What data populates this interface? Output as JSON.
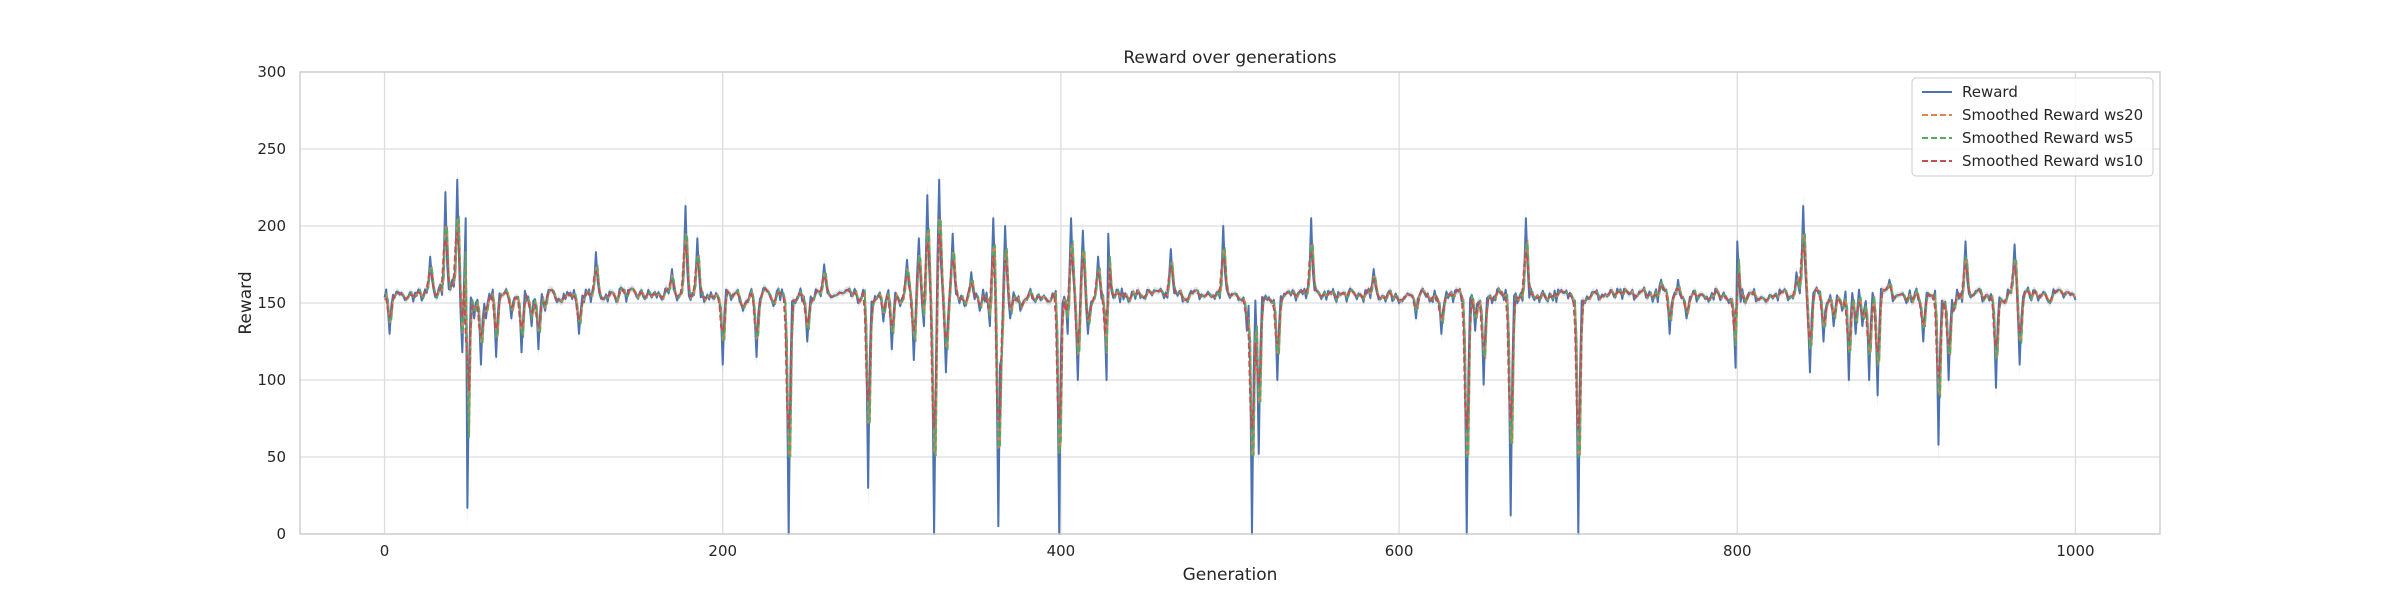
{
  "chart_data": {
    "type": "line",
    "title": "Reward over generations",
    "xlabel": "Generation",
    "ylabel": "Reward",
    "xlim": [
      -50,
      1050
    ],
    "ylim": [
      0,
      300
    ],
    "xticks": [
      0,
      200,
      400,
      600,
      800,
      1000
    ],
    "yticks": [
      0,
      50,
      100,
      150,
      200,
      250,
      300
    ],
    "grid": true,
    "legend_position": "upper right",
    "baseline": 155,
    "colors": {
      "Reward": "#4c72b0",
      "Smoothed Reward ws20": "#dd8452",
      "Smoothed Reward ws5": "#55a868",
      "Smoothed Reward ws10": "#c44e52",
      "band": "#4c72b0"
    },
    "series": [
      {
        "name": "Reward",
        "style": "solid"
      },
      {
        "name": "Smoothed Reward ws20",
        "style": "dashed"
      },
      {
        "name": "Smoothed Reward ws5",
        "style": "dashed"
      },
      {
        "name": "Smoothed Reward ws10",
        "style": "dashed"
      }
    ],
    "reward_events": [
      [
        3,
        130
      ],
      [
        12,
        152
      ],
      [
        27,
        180
      ],
      [
        33,
        162
      ],
      [
        36,
        222
      ],
      [
        40,
        165
      ],
      [
        43,
        230
      ],
      [
        46,
        118
      ],
      [
        48,
        205
      ],
      [
        49,
        17
      ],
      [
        53,
        140
      ],
      [
        57,
        110
      ],
      [
        60,
        140
      ],
      [
        66,
        115
      ],
      [
        75,
        140
      ],
      [
        81,
        118
      ],
      [
        87,
        135
      ],
      [
        91,
        120
      ],
      [
        95,
        145
      ],
      [
        115,
        130
      ],
      [
        125,
        183
      ],
      [
        140,
        160
      ],
      [
        170,
        172
      ],
      [
        178,
        213
      ],
      [
        185,
        192
      ],
      [
        200,
        110
      ],
      [
        205,
        152
      ],
      [
        212,
        145
      ],
      [
        220,
        115
      ],
      [
        225,
        160
      ],
      [
        230,
        148
      ],
      [
        237,
        150
      ],
      [
        239,
        0
      ],
      [
        243,
        150
      ],
      [
        250,
        125
      ],
      [
        260,
        175
      ],
      [
        280,
        150
      ],
      [
        286,
        30
      ],
      [
        289,
        148
      ],
      [
        292,
        155
      ],
      [
        295,
        138
      ],
      [
        300,
        120
      ],
      [
        305,
        148
      ],
      [
        309,
        178
      ],
      [
        313,
        113
      ],
      [
        316,
        192
      ],
      [
        319,
        135
      ],
      [
        321,
        220
      ],
      [
        325,
        0
      ],
      [
        328,
        230
      ],
      [
        332,
        105
      ],
      [
        336,
        195
      ],
      [
        340,
        150
      ],
      [
        343,
        148
      ],
      [
        347,
        170
      ],
      [
        352,
        145
      ],
      [
        358,
        135
      ],
      [
        360,
        205
      ],
      [
        363,
        5
      ],
      [
        365,
        115
      ],
      [
        367,
        200
      ],
      [
        370,
        140
      ],
      [
        376,
        145
      ],
      [
        380,
        152
      ],
      [
        399,
        0
      ],
      [
        401,
        150
      ],
      [
        404,
        130
      ],
      [
        406,
        205
      ],
      [
        410,
        100
      ],
      [
        413,
        197
      ],
      [
        416,
        130
      ],
      [
        422,
        180
      ],
      [
        425,
        155
      ],
      [
        427,
        100
      ],
      [
        428,
        195
      ],
      [
        465,
        185
      ],
      [
        496,
        200
      ],
      [
        510,
        132
      ],
      [
        513,
        0
      ],
      [
        517,
        52
      ],
      [
        522,
        152
      ],
      [
        525,
        150
      ],
      [
        528,
        100
      ],
      [
        548,
        205
      ],
      [
        585,
        172
      ],
      [
        600,
        150
      ],
      [
        610,
        140
      ],
      [
        625,
        130
      ],
      [
        640,
        0
      ],
      [
        645,
        132
      ],
      [
        650,
        97
      ],
      [
        655,
        150
      ],
      [
        666,
        12
      ],
      [
        670,
        150
      ],
      [
        675,
        205
      ],
      [
        680,
        152
      ],
      [
        706,
        0
      ],
      [
        710,
        150
      ],
      [
        745,
        160
      ],
      [
        755,
        165
      ],
      [
        760,
        130
      ],
      [
        765,
        165
      ],
      [
        770,
        140
      ],
      [
        780,
        155
      ],
      [
        795,
        150
      ],
      [
        799,
        108
      ],
      [
        800,
        190
      ],
      [
        805,
        150
      ],
      [
        820,
        155
      ],
      [
        835,
        170
      ],
      [
        839,
        213
      ],
      [
        843,
        105
      ],
      [
        847,
        160
      ],
      [
        851,
        125
      ],
      [
        853,
        150
      ],
      [
        857,
        135
      ],
      [
        862,
        145
      ],
      [
        866,
        100
      ],
      [
        870,
        130
      ],
      [
        874,
        135
      ],
      [
        878,
        100
      ],
      [
        883,
        90
      ],
      [
        890,
        165
      ],
      [
        900,
        150
      ],
      [
        910,
        125
      ],
      [
        915,
        155
      ],
      [
        919,
        58
      ],
      [
        922,
        150
      ],
      [
        925,
        100
      ],
      [
        928,
        145
      ],
      [
        935,
        190
      ],
      [
        940,
        155
      ],
      [
        953,
        95
      ],
      [
        958,
        150
      ],
      [
        964,
        188
      ],
      [
        967,
        110
      ],
      [
        972,
        160
      ],
      [
        985,
        150
      ],
      [
        1000,
        152
      ]
    ]
  }
}
